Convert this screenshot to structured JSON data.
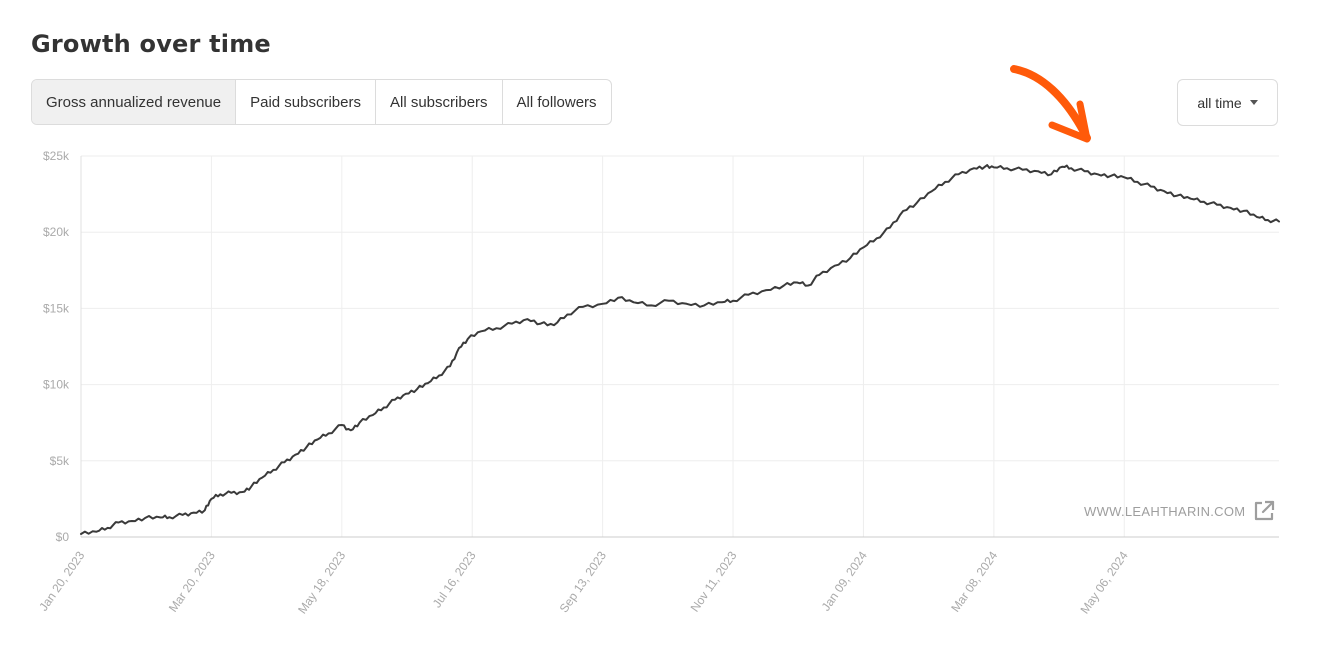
{
  "header": {
    "title": "Growth over time"
  },
  "tabs": [
    {
      "label": "Gross annualized revenue",
      "active": true
    },
    {
      "label": "Paid subscribers",
      "active": false
    },
    {
      "label": "All subscribers",
      "active": false
    },
    {
      "label": "All followers",
      "active": false
    }
  ],
  "range_select": {
    "value": "all time"
  },
  "watermark": {
    "text": "WWW.LEAHTHARIN.COM",
    "icon": "external-link-icon"
  },
  "colors": {
    "line": "#3a3a3a",
    "annotation_arrow": "#ff5a0a",
    "grid": "#eeeeee",
    "axis_text": "#aaaaaa"
  },
  "chart_data": {
    "type": "line",
    "title": "",
    "xlabel": "",
    "ylabel": "",
    "ylim": [
      0,
      25000
    ],
    "xlim": [
      "2023-01-20",
      "2024-07-15"
    ],
    "grid": true,
    "y_ticks": [
      {
        "value": 0,
        "label": "$0"
      },
      {
        "value": 5000,
        "label": "$5k"
      },
      {
        "value": 10000,
        "label": "$10k"
      },
      {
        "value": 15000,
        "label": "$15k"
      },
      {
        "value": 20000,
        "label": "$20k"
      },
      {
        "value": 25000,
        "label": "$25k"
      }
    ],
    "x_ticks": [
      {
        "value": "2023-01-20",
        "label": "Jan 20, 2023"
      },
      {
        "value": "2023-03-20",
        "label": "Mar 20, 2023"
      },
      {
        "value": "2023-05-18",
        "label": "May 18, 2023"
      },
      {
        "value": "2023-07-16",
        "label": "Jul 16, 2023"
      },
      {
        "value": "2023-09-13",
        "label": "Sep 13, 2023"
      },
      {
        "value": "2023-11-11",
        "label": "Nov 11, 2023"
      },
      {
        "value": "2024-01-09",
        "label": "Jan 09, 2024"
      },
      {
        "value": "2024-03-08",
        "label": "Mar 08, 2024"
      },
      {
        "value": "2024-05-06",
        "label": "May 06, 2024"
      }
    ],
    "series": [
      {
        "points": [
          [
            "2023-01-20",
            200
          ],
          [
            "2023-01-27",
            350
          ],
          [
            "2023-02-01",
            600
          ],
          [
            "2023-02-06",
            950
          ],
          [
            "2023-02-12",
            1050
          ],
          [
            "2023-02-18",
            1250
          ],
          [
            "2023-02-25",
            1280
          ],
          [
            "2023-03-01",
            1300
          ],
          [
            "2023-03-07",
            1450
          ],
          [
            "2023-03-12",
            1600
          ],
          [
            "2023-03-17",
            1750
          ],
          [
            "2023-03-20",
            2500
          ],
          [
            "2023-03-24",
            2800
          ],
          [
            "2023-03-29",
            2900
          ],
          [
            "2023-04-03",
            2950
          ],
          [
            "2023-04-07",
            3300
          ],
          [
            "2023-04-12",
            3900
          ],
          [
            "2023-04-17",
            4400
          ],
          [
            "2023-04-22",
            4900
          ],
          [
            "2023-04-27",
            5400
          ],
          [
            "2023-05-02",
            5900
          ],
          [
            "2023-05-07",
            6400
          ],
          [
            "2023-05-12",
            6800
          ],
          [
            "2023-05-18",
            7350
          ],
          [
            "2023-05-22",
            7000
          ],
          [
            "2023-05-26",
            7500
          ],
          [
            "2023-06-01",
            8000
          ],
          [
            "2023-06-06",
            8500
          ],
          [
            "2023-06-11",
            9000
          ],
          [
            "2023-06-16",
            9400
          ],
          [
            "2023-06-21",
            9700
          ],
          [
            "2023-06-26",
            10100
          ],
          [
            "2023-07-01",
            10600
          ],
          [
            "2023-07-06",
            11200
          ],
          [
            "2023-07-10",
            12400
          ],
          [
            "2023-07-14",
            13000
          ],
          [
            "2023-07-20",
            13500
          ],
          [
            "2023-07-27",
            13700
          ],
          [
            "2023-08-03",
            14000
          ],
          [
            "2023-08-10",
            14300
          ],
          [
            "2023-08-16",
            14000
          ],
          [
            "2023-08-22",
            13900
          ],
          [
            "2023-08-28",
            14600
          ],
          [
            "2023-09-04",
            15100
          ],
          [
            "2023-09-13",
            15300
          ],
          [
            "2023-09-20",
            15700
          ],
          [
            "2023-09-27",
            15400
          ],
          [
            "2023-10-05",
            15200
          ],
          [
            "2023-10-13",
            15500
          ],
          [
            "2023-10-21",
            15300
          ],
          [
            "2023-10-29",
            15200
          ],
          [
            "2023-11-06",
            15400
          ],
          [
            "2023-11-11",
            15500
          ],
          [
            "2023-11-18",
            15900
          ],
          [
            "2023-11-26",
            16200
          ],
          [
            "2023-12-04",
            16500
          ],
          [
            "2023-12-10",
            16700
          ],
          [
            "2023-12-15",
            16500
          ],
          [
            "2023-12-20",
            17200
          ],
          [
            "2023-12-27",
            17800
          ],
          [
            "2024-01-03",
            18300
          ],
          [
            "2024-01-09",
            19000
          ],
          [
            "2024-01-15",
            19600
          ],
          [
            "2024-01-21",
            20300
          ],
          [
            "2024-01-27",
            21400
          ],
          [
            "2024-02-02",
            21900
          ],
          [
            "2024-02-09",
            22700
          ],
          [
            "2024-02-15",
            23300
          ],
          [
            "2024-02-21",
            23800
          ],
          [
            "2024-02-28",
            24200
          ],
          [
            "2024-03-04",
            24300
          ],
          [
            "2024-03-08",
            24250
          ],
          [
            "2024-03-14",
            24200
          ],
          [
            "2024-03-21",
            24100
          ],
          [
            "2024-03-28",
            24000
          ],
          [
            "2024-04-03",
            23800
          ],
          [
            "2024-04-08",
            24300
          ],
          [
            "2024-04-12",
            24200
          ],
          [
            "2024-04-18",
            24000
          ],
          [
            "2024-04-24",
            23800
          ],
          [
            "2024-04-30",
            23700
          ],
          [
            "2024-05-06",
            23600
          ],
          [
            "2024-05-12",
            23300
          ],
          [
            "2024-05-18",
            23000
          ],
          [
            "2024-05-24",
            22700
          ],
          [
            "2024-05-30",
            22400
          ],
          [
            "2024-06-05",
            22200
          ],
          [
            "2024-06-11",
            22000
          ],
          [
            "2024-06-17",
            21800
          ],
          [
            "2024-06-23",
            21600
          ],
          [
            "2024-06-29",
            21400
          ],
          [
            "2024-07-05",
            21000
          ],
          [
            "2024-07-10",
            20800
          ],
          [
            "2024-07-15",
            20700
          ]
        ]
      }
    ]
  }
}
